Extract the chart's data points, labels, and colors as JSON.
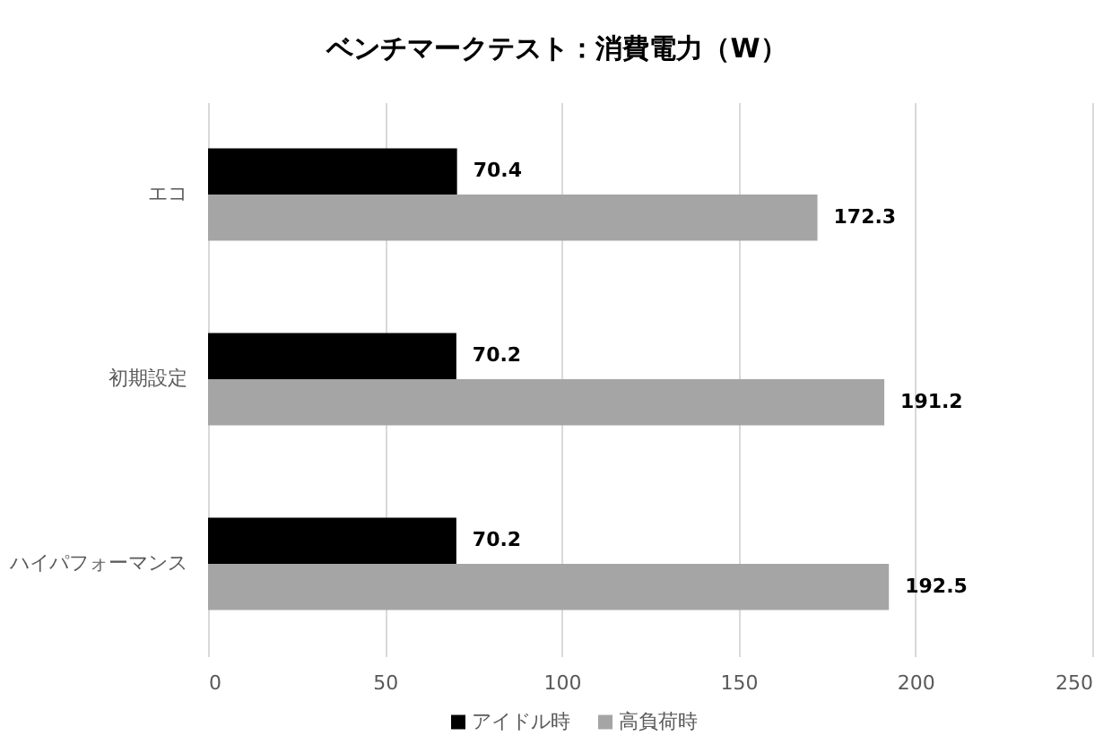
{
  "chart_data": {
    "type": "bar",
    "orientation": "horizontal",
    "title": "ベンチマークテスト：消費電力（W）",
    "categories": [
      "エコ",
      "初期設定",
      "ハイパフォーマンス"
    ],
    "series": [
      {
        "name": "アイドル時",
        "color": "#000000",
        "values": [
          70.4,
          70.2,
          70.2
        ]
      },
      {
        "name": "高負荷時",
        "color": "#a5a5a5",
        "values": [
          172.3,
          191.2,
          192.5
        ]
      }
    ],
    "xlim": [
      0,
      250
    ],
    "xticks": [
      0,
      50,
      100,
      150,
      200,
      250
    ],
    "grid": "x",
    "legend": "bottom",
    "data_labels": true
  }
}
